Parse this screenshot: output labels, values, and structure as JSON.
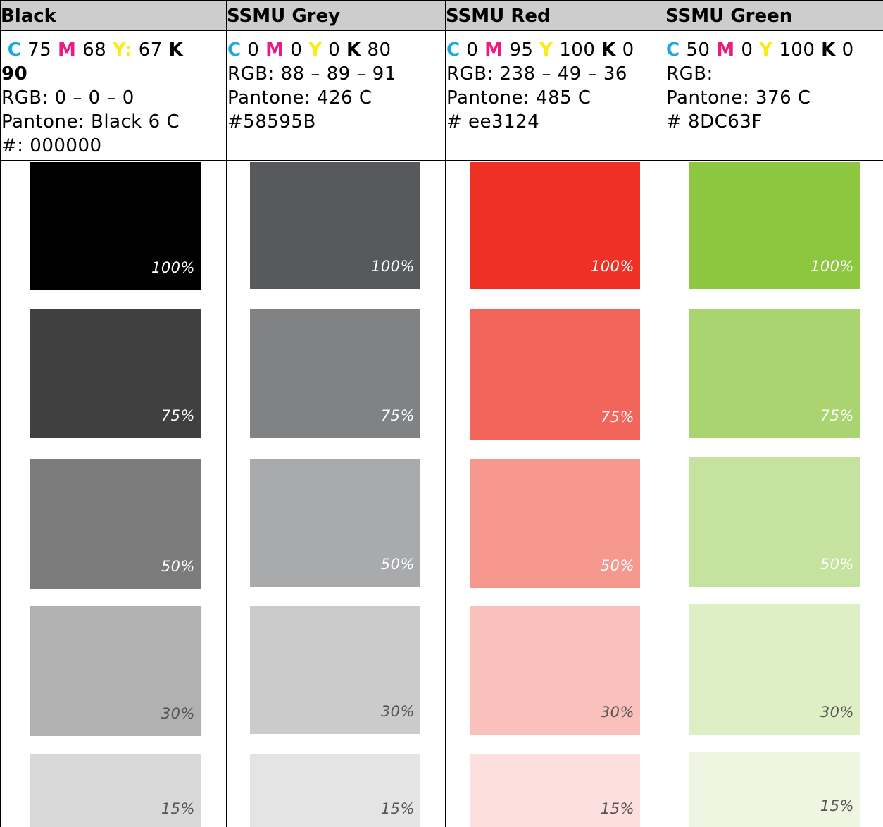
{
  "columns": [
    {
      "title": "Black",
      "cmyk": {
        "c_label": "C",
        "c": "75",
        "m_label": "M",
        "m": "68",
        "y_label": "Y:",
        "y": "67",
        "k_label": "K",
        "k": "90"
      },
      "rgb": "RGB: 0 – 0 – 0",
      "pantone": "Pantone: Black 6 C",
      "hex": "#: 000000",
      "swatches": [
        {
          "label": "100%",
          "color": "#000000"
        },
        {
          "label": "75%",
          "color": "#404040"
        },
        {
          "label": "50%",
          "color": "#7b7b7b"
        },
        {
          "label": "30%",
          "color": "#b1b1b1"
        },
        {
          "label": "15%",
          "color": "#d8d8d8"
        }
      ]
    },
    {
      "title": "SSMU Grey",
      "cmyk": {
        "c_label": "C",
        "c": "0",
        "m_label": "M",
        "m": "0",
        "y_label": "Y",
        "y": "0",
        "k_label": "K",
        "k": "80"
      },
      "rgb": "RGB: 88 – 89 – 91",
      "pantone": "Pantone: 426 C",
      "hex": "#58595B",
      "swatches": [
        {
          "label": "100%",
          "color": "#58595b"
        },
        {
          "label": "75%",
          "color": "#818284"
        },
        {
          "label": "50%",
          "color": "#a9aaac"
        },
        {
          "label": "30%",
          "color": "#cbcbcc"
        },
        {
          "label": "15%",
          "color": "#e4e4e4"
        }
      ]
    },
    {
      "title": "SSMU Red",
      "cmyk": {
        "c_label": "C",
        "c": "0",
        "m_label": "M",
        "m": "95",
        "y_label": "Y",
        "y": "100",
        "k_label": "K",
        "k": "0"
      },
      "rgb": "RGB: 238 – 49 – 36",
      "pantone": "Pantone: 485 C",
      "hex": "# ee3124",
      "swatches": [
        {
          "label": "100%",
          "color": "#ee3124"
        },
        {
          "label": "75%",
          "color": "#f2655b"
        },
        {
          "label": "50%",
          "color": "#f7988f"
        },
        {
          "label": "30%",
          "color": "#fac1bc"
        },
        {
          "label": "15%",
          "color": "#fde0dd"
        }
      ]
    },
    {
      "title": "SSMU Green",
      "cmyk": {
        "c_label": "C",
        "c": "50",
        "m_label": "M",
        "m": "0",
        "y_label": "Y",
        "y": "100",
        "k_label": "K",
        "k": "0"
      },
      "rgb": "RGB:",
      "pantone": "Pantone: 376 C",
      "hex": "# 8DC63F",
      "swatches": [
        {
          "label": "100%",
          "color": "#8dc63f"
        },
        {
          "label": "75%",
          "color": "#a9d46f"
        },
        {
          "label": "50%",
          "color": "#c6e29f"
        },
        {
          "label": "30%",
          "color": "#deeec5"
        },
        {
          "label": "15%",
          "color": "#eef6e2"
        }
      ]
    }
  ]
}
